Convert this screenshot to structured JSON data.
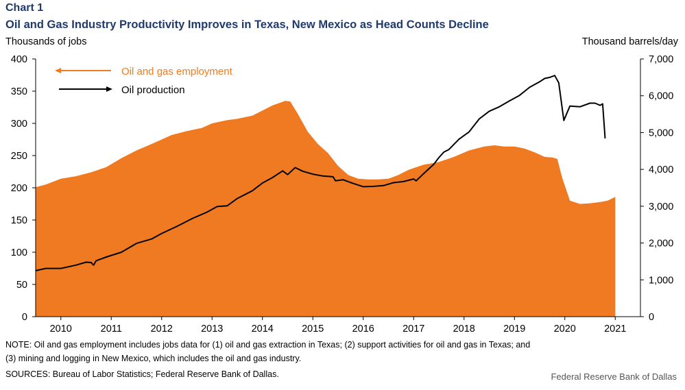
{
  "header": {
    "chart_number": "Chart 1",
    "title": "Oil and Gas Industry Productivity Improves in Texas, New Mexico as Head Counts Decline"
  },
  "footer": {
    "note_line1": "NOTE: Oil and gas employment includes jobs data for (1) oil and gas extraction in Texas; (2) support activities for oil and gas in Texas; and",
    "note_line2": "(3) mining and logging in New Mexico, which includes the oil and gas industry.",
    "sources": "SOURCES: Bureau of Labor Statistics; Federal Reserve Bank of Dallas.",
    "credit": "Federal Reserve Bank of Dallas"
  },
  "colors": {
    "employment": "#f07a22",
    "production": "#000000"
  },
  "chart_data": {
    "type": "area",
    "xlabel": "",
    "ylabel_left": "Thousands of jobs",
    "ylabel_right": "Thousand barrels/day",
    "x_ticks": [
      "2010",
      "2011",
      "2012",
      "2013",
      "2014",
      "2015",
      "2016",
      "2017",
      "2018",
      "2019",
      "2020",
      "2021"
    ],
    "x_range": [
      2009.5,
      2021.5
    ],
    "y_left": {
      "min": 0,
      "max": 400,
      "ticks": [
        "0",
        "50",
        "100",
        "150",
        "200",
        "250",
        "300",
        "350",
        "400"
      ]
    },
    "y_right": {
      "min": 0,
      "max": 7000,
      "ticks": [
        "0",
        "1,000",
        "2,000",
        "3,000",
        "4,000",
        "5,000",
        "6,000",
        "7,000"
      ]
    },
    "grid": false,
    "legend_position": "top-left",
    "series": [
      {
        "name": "Oil and gas employment",
        "type": "area",
        "axis": "left",
        "x": [
          2009.5,
          2009.7,
          2010.0,
          2010.3,
          2010.6,
          2010.9,
          2011.2,
          2011.5,
          2011.8,
          2012.0,
          2012.2,
          2012.5,
          2012.8,
          2013.0,
          2013.3,
          2013.5,
          2013.8,
          2014.0,
          2014.2,
          2014.35,
          2014.45,
          2014.55,
          2014.7,
          2014.9,
          2015.1,
          2015.3,
          2015.5,
          2015.7,
          2015.9,
          2016.1,
          2016.3,
          2016.5,
          2016.7,
          2016.9,
          2017.2,
          2017.5,
          2017.8,
          2018.1,
          2018.4,
          2018.6,
          2018.8,
          2019.0,
          2019.2,
          2019.4,
          2019.6,
          2019.75,
          2019.85,
          2019.95,
          2020.1,
          2020.3,
          2020.5,
          2020.7,
          2020.85,
          2021.0
        ],
        "values": [
          201,
          205,
          214,
          218,
          224,
          232,
          246,
          258,
          268,
          275,
          282,
          288,
          293,
          300,
          305,
          307,
          312,
          320,
          328,
          332,
          335,
          334,
          315,
          287,
          268,
          254,
          234,
          220,
          214,
          213,
          213,
          214,
          220,
          228,
          236,
          240,
          248,
          258,
          264,
          266,
          264,
          264,
          261,
          255,
          248,
          247,
          245,
          215,
          180,
          175,
          176,
          178,
          180,
          186
        ]
      },
      {
        "name": "Oil production",
        "type": "line",
        "axis": "right",
        "x": [
          2009.5,
          2009.7,
          2010.0,
          2010.3,
          2010.5,
          2010.6,
          2010.65,
          2010.7,
          2010.9,
          2011.2,
          2011.5,
          2011.8,
          2012.0,
          2012.3,
          2012.6,
          2012.9,
          2013.1,
          2013.3,
          2013.5,
          2013.8,
          2014.0,
          2014.2,
          2014.4,
          2014.5,
          2014.65,
          2014.8,
          2015.0,
          2015.2,
          2015.4,
          2015.45,
          2015.6,
          2015.8,
          2016.0,
          2016.2,
          2016.4,
          2016.55,
          2016.6,
          2016.8,
          2017.0,
          2017.05,
          2017.2,
          2017.4,
          2017.5,
          2017.6,
          2017.7,
          2017.9,
          2018.1,
          2018.3,
          2018.5,
          2018.7,
          2018.9,
          2019.1,
          2019.3,
          2019.5,
          2019.6,
          2019.7,
          2019.8,
          2019.88,
          2019.98,
          2020.1,
          2020.3,
          2020.5,
          2020.6,
          2020.7,
          2020.75,
          2020.8
        ],
        "values": [
          1250,
          1310,
          1310,
          1400,
          1480,
          1470,
          1400,
          1520,
          1620,
          1750,
          1990,
          2110,
          2260,
          2450,
          2660,
          2840,
          2990,
          3010,
          3210,
          3420,
          3630,
          3780,
          3960,
          3860,
          4050,
          3950,
          3870,
          3820,
          3800,
          3690,
          3720,
          3620,
          3530,
          3540,
          3560,
          3620,
          3640,
          3670,
          3740,
          3690,
          3890,
          4140,
          4320,
          4470,
          4540,
          4820,
          5020,
          5370,
          5580,
          5700,
          5860,
          6010,
          6230,
          6380,
          6470,
          6500,
          6550,
          6350,
          5330,
          5720,
          5700,
          5800,
          5800,
          5740,
          5780,
          4840
        ]
      }
    ]
  }
}
